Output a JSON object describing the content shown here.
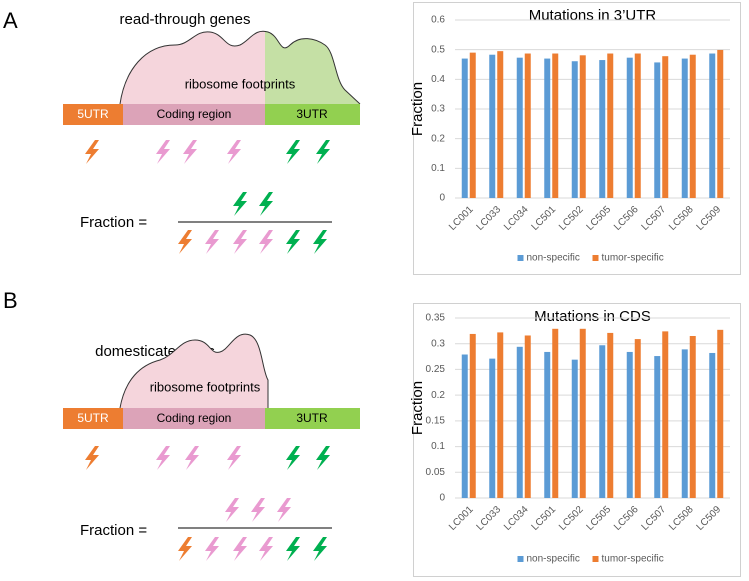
{
  "panels": [
    {
      "label": "A",
      "title": "read-through genes",
      "footprint": "ribosome footprints",
      "regions": [
        "5UTR",
        "Coding region",
        "3UTR"
      ],
      "equation": "Fraction ="
    },
    {
      "label": "B",
      "title": "domesticated TEs",
      "footprint": "ribosome footprints",
      "regions": [
        "5UTR",
        "Coding region",
        "3UTR"
      ],
      "equation": "Fraction ="
    }
  ],
  "chart_data": [
    {
      "type": "bar",
      "title": "Mutations in 3’UTR",
      "y_label": "Fraction",
      "categories": [
        "LC001",
        "LC033",
        "LC034",
        "LC501",
        "LC502",
        "LC505",
        "LC506",
        "LC507",
        "LC508",
        "LC509"
      ],
      "series": [
        {
          "name": "non-specific",
          "color": "#5b9bd5",
          "values": [
            0.47,
            0.483,
            0.473,
            0.47,
            0.461,
            0.465,
            0.473,
            0.457,
            0.47,
            0.487
          ]
        },
        {
          "name": "tumor-specific",
          "color": "#ed7d31",
          "values": [
            0.49,
            0.495,
            0.487,
            0.487,
            0.481,
            0.487,
            0.487,
            0.478,
            0.483,
            0.499
          ]
        }
      ],
      "ylim": [
        0,
        0.6
      ],
      "yticks": [
        0,
        0.1,
        0.2,
        0.3,
        0.4,
        0.5,
        0.6
      ],
      "grid": true,
      "legend": "bottom"
    },
    {
      "type": "bar",
      "title": "Mutations in CDS",
      "y_label": "Fraction",
      "categories": [
        "LC001",
        "LC033",
        "LC034",
        "LC501",
        "LC502",
        "LC505",
        "LC506",
        "LC507",
        "LC508",
        "LC509"
      ],
      "series": [
        {
          "name": "non-specific",
          "color": "#5b9bd5",
          "values": [
            0.279,
            0.271,
            0.294,
            0.284,
            0.269,
            0.297,
            0.284,
            0.276,
            0.289,
            0.282
          ]
        },
        {
          "name": "tumor-specific",
          "color": "#ed7d31",
          "values": [
            0.319,
            0.322,
            0.316,
            0.329,
            0.329,
            0.321,
            0.309,
            0.324,
            0.315,
            0.327
          ]
        }
      ],
      "ylim": [
        0,
        0.35
      ],
      "yticks": [
        0,
        0.05,
        0.1,
        0.15,
        0.2,
        0.25,
        0.3,
        0.35
      ],
      "grid": true,
      "legend": "bottom"
    }
  ]
}
